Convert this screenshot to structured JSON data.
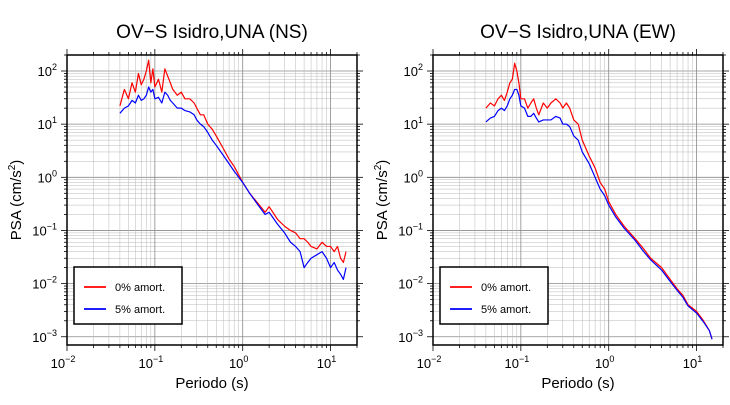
{
  "chart_data": [
    {
      "type": "line",
      "title": "OV−S Isidro,UNA (NS)",
      "xlabel": "Periodo (s)",
      "ylabel_main": "PSA (cm/s",
      "ylabel_sup": "2",
      "ylabel_tail": ")",
      "x_scale": "log",
      "y_scale": "log",
      "xlim": [
        0.01,
        20
      ],
      "ylim": [
        0.0007,
        200
      ],
      "x_ticks": [
        {
          "base": "10",
          "exp": "−2",
          "value": 0.01
        },
        {
          "base": "10",
          "exp": "−1",
          "value": 0.1
        },
        {
          "base": "10",
          "exp": "0",
          "value": 1
        },
        {
          "base": "10",
          "exp": "1",
          "value": 10
        }
      ],
      "y_ticks": [
        {
          "base": "10",
          "exp": "2",
          "value": 100
        },
        {
          "base": "10",
          "exp": "1",
          "value": 10
        },
        {
          "base": "10",
          "exp": "0",
          "value": 1
        },
        {
          "base": "10",
          "exp": "−1",
          "value": 0.1
        },
        {
          "base": "10",
          "exp": "−2",
          "value": 0.01
        },
        {
          "base": "10",
          "exp": "−3",
          "value": 0.001
        }
      ],
      "grid": true,
      "legend_position": "bottom-left",
      "series": [
        {
          "name": "0% amort.",
          "color": "#ff0000",
          "x": [
            0.04,
            0.045,
            0.05,
            0.055,
            0.06,
            0.065,
            0.07,
            0.075,
            0.08,
            0.085,
            0.09,
            0.095,
            0.1,
            0.11,
            0.12,
            0.13,
            0.14,
            0.15,
            0.16,
            0.18,
            0.2,
            0.22,
            0.25,
            0.28,
            0.3,
            0.33,
            0.36,
            0.4,
            0.45,
            0.5,
            0.6,
            0.7,
            0.8,
            1.0,
            1.2,
            1.5,
            1.8,
            2.0,
            2.5,
            3.0,
            3.5,
            4.0,
            4.5,
            5.0,
            5.5,
            6.0,
            7.0,
            8.0,
            9.0,
            10.0,
            11.0,
            12.0,
            13.0,
            14.0,
            15.0
          ],
          "y": [
            22,
            45,
            30,
            60,
            40,
            90,
            55,
            70,
            100,
            160,
            60,
            110,
            50,
            70,
            40,
            110,
            80,
            60,
            45,
            35,
            40,
            30,
            30,
            25,
            20,
            15,
            15,
            10,
            8,
            6,
            3.5,
            2.2,
            1.6,
            0.8,
            0.5,
            0.32,
            0.22,
            0.28,
            0.16,
            0.12,
            0.1,
            0.09,
            0.07,
            0.07,
            0.06,
            0.05,
            0.045,
            0.06,
            0.05,
            0.05,
            0.04,
            0.05,
            0.03,
            0.025,
            0.04
          ]
        },
        {
          "name": "5% amort.",
          "color": "#0000ff",
          "x": [
            0.04,
            0.045,
            0.05,
            0.055,
            0.06,
            0.065,
            0.07,
            0.075,
            0.08,
            0.085,
            0.09,
            0.095,
            0.1,
            0.11,
            0.12,
            0.13,
            0.14,
            0.15,
            0.16,
            0.18,
            0.2,
            0.22,
            0.25,
            0.28,
            0.3,
            0.33,
            0.36,
            0.4,
            0.45,
            0.5,
            0.6,
            0.7,
            0.8,
            1.0,
            1.2,
            1.5,
            1.8,
            2.0,
            2.5,
            3.0,
            3.5,
            4.0,
            4.5,
            5.0,
            5.5,
            6.0,
            7.0,
            8.0,
            9.0,
            10.0,
            11.0,
            12.0,
            13.0,
            14.0,
            15.0
          ],
          "y": [
            16,
            20,
            22,
            28,
            25,
            35,
            28,
            30,
            35,
            50,
            40,
            45,
            30,
            32,
            25,
            40,
            35,
            28,
            25,
            20,
            20,
            18,
            17,
            15,
            12,
            10,
            9,
            7,
            5,
            4,
            2.6,
            1.8,
            1.3,
            0.8,
            0.5,
            0.3,
            0.2,
            0.22,
            0.13,
            0.09,
            0.06,
            0.05,
            0.04,
            0.02,
            0.025,
            0.03,
            0.035,
            0.04,
            0.03,
            0.02,
            0.025,
            0.018,
            0.015,
            0.012,
            0.02
          ]
        }
      ]
    },
    {
      "type": "line",
      "title": "OV−S Isidro,UNA (EW)",
      "xlabel": "Periodo (s)",
      "ylabel_main": "PSA (cm/s",
      "ylabel_sup": "2",
      "ylabel_tail": ")",
      "x_scale": "log",
      "y_scale": "log",
      "xlim": [
        0.01,
        20
      ],
      "ylim": [
        0.0007,
        200
      ],
      "x_ticks": [
        {
          "base": "10",
          "exp": "−2",
          "value": 0.01
        },
        {
          "base": "10",
          "exp": "−1",
          "value": 0.1
        },
        {
          "base": "10",
          "exp": "0",
          "value": 1
        },
        {
          "base": "10",
          "exp": "1",
          "value": 10
        }
      ],
      "y_ticks": [
        {
          "base": "10",
          "exp": "2",
          "value": 100
        },
        {
          "base": "10",
          "exp": "1",
          "value": 10
        },
        {
          "base": "10",
          "exp": "0",
          "value": 1
        },
        {
          "base": "10",
          "exp": "−1",
          "value": 0.1
        },
        {
          "base": "10",
          "exp": "−2",
          "value": 0.01
        },
        {
          "base": "10",
          "exp": "−3",
          "value": 0.001
        }
      ],
      "grid": true,
      "legend_position": "bottom-left",
      "series": [
        {
          "name": "0% amort.",
          "color": "#ff0000",
          "x": [
            0.04,
            0.045,
            0.05,
            0.055,
            0.06,
            0.065,
            0.07,
            0.075,
            0.08,
            0.085,
            0.09,
            0.095,
            0.1,
            0.11,
            0.12,
            0.13,
            0.14,
            0.15,
            0.16,
            0.18,
            0.2,
            0.22,
            0.25,
            0.28,
            0.3,
            0.33,
            0.36,
            0.4,
            0.45,
            0.5,
            0.6,
            0.7,
            0.8,
            0.9,
            1.0,
            1.2,
            1.5,
            2.0,
            2.5,
            3.0,
            4.0,
            5.0,
            6.0,
            7.0,
            8.0,
            10.0,
            12.0,
            14.0,
            15.0
          ],
          "y": [
            20,
            25,
            22,
            30,
            35,
            28,
            40,
            60,
            70,
            140,
            100,
            60,
            30,
            30,
            20,
            25,
            30,
            20,
            15,
            25,
            20,
            25,
            30,
            25,
            20,
            25,
            20,
            12,
            10,
            5,
            2.5,
            1.5,
            0.8,
            0.6,
            0.35,
            0.2,
            0.12,
            0.07,
            0.045,
            0.03,
            0.02,
            0.012,
            0.008,
            0.006,
            0.004,
            0.003,
            0.002,
            0.0013,
            0.0009
          ]
        },
        {
          "name": "5% amort.",
          "color": "#0000ff",
          "x": [
            0.04,
            0.045,
            0.05,
            0.055,
            0.06,
            0.065,
            0.07,
            0.075,
            0.08,
            0.085,
            0.09,
            0.095,
            0.1,
            0.11,
            0.12,
            0.13,
            0.14,
            0.15,
            0.16,
            0.18,
            0.2,
            0.22,
            0.25,
            0.28,
            0.3,
            0.33,
            0.36,
            0.4,
            0.45,
            0.5,
            0.6,
            0.7,
            0.8,
            0.9,
            1.0,
            1.2,
            1.5,
            2.0,
            2.5,
            3.0,
            4.0,
            5.0,
            6.0,
            7.0,
            8.0,
            10.0,
            12.0,
            14.0,
            15.0
          ],
          "y": [
            11,
            13,
            14,
            18,
            20,
            18,
            22,
            30,
            35,
            45,
            45,
            35,
            22,
            20,
            14,
            14,
            16,
            13,
            11,
            12,
            12,
            12,
            14,
            13,
            10,
            10,
            9,
            6,
            5,
            3,
            1.8,
            1.0,
            0.6,
            0.45,
            0.3,
            0.18,
            0.11,
            0.065,
            0.04,
            0.028,
            0.018,
            0.011,
            0.0075,
            0.0055,
            0.0038,
            0.0028,
            0.0019,
            0.0013,
            0.0009
          ]
        }
      ]
    }
  ]
}
